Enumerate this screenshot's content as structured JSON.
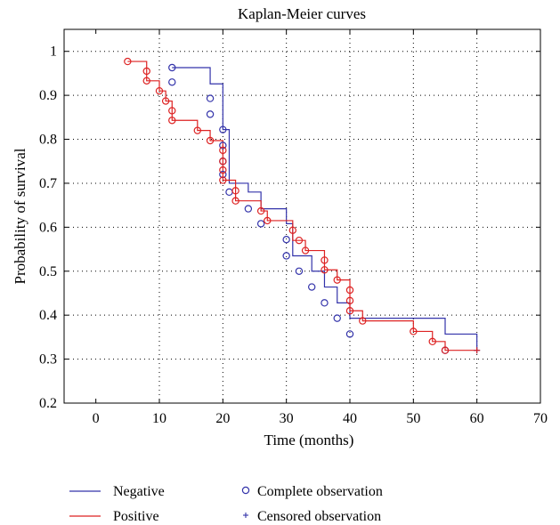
{
  "chart_data": {
    "type": "line",
    "title": "Kaplan-Meier curves",
    "xlabel": "Time (months)",
    "ylabel": "Probability of survival",
    "xlim": [
      -5,
      70
    ],
    "ylim": [
      0.2,
      1.05
    ],
    "xticks": [
      0,
      10,
      20,
      30,
      40,
      50,
      60,
      70
    ],
    "xtick_labels": [
      "0",
      "10",
      "20",
      "30",
      "40",
      "50",
      "60",
      "70"
    ],
    "yticks": [
      0.2,
      0.3,
      0.4,
      0.5,
      0.6,
      0.7,
      0.8,
      0.9,
      1.0
    ],
    "ytick_labels": [
      "0.2",
      "0.3",
      "0.4",
      "0.5",
      "0.6",
      "0.7",
      "0.8",
      "0.9",
      "1"
    ],
    "grid": true,
    "legend_position": "below",
    "series": [
      {
        "name": "Negative",
        "color": "#3333aa",
        "steps": [
          [
            12,
            0.963
          ],
          [
            18,
            0.926
          ],
          [
            20,
            0.822
          ],
          [
            21,
            0.7
          ],
          [
            24,
            0.68
          ],
          [
            26,
            0.642
          ],
          [
            30,
            0.608
          ],
          [
            31,
            0.535
          ],
          [
            34,
            0.5
          ],
          [
            36,
            0.464
          ],
          [
            38,
            0.428
          ],
          [
            40,
            0.393
          ],
          [
            55,
            0.357
          ],
          [
            60,
            0.32
          ]
        ],
        "step_start": 12,
        "end_x": 60,
        "complete_observations": [
          [
            12,
            0.963
          ],
          [
            12,
            0.93
          ],
          [
            18,
            0.893
          ],
          [
            18,
            0.857
          ],
          [
            20,
            0.822
          ],
          [
            20,
            0.786
          ],
          [
            20,
            0.75
          ],
          [
            20,
            0.72
          ],
          [
            21,
            0.68
          ],
          [
            24,
            0.642
          ],
          [
            26,
            0.608
          ],
          [
            30,
            0.572
          ],
          [
            30,
            0.535
          ],
          [
            32,
            0.5
          ],
          [
            34,
            0.464
          ],
          [
            36,
            0.428
          ],
          [
            38,
            0.393
          ],
          [
            40,
            0.357
          ],
          [
            55,
            0.32
          ]
        ],
        "censored_observations": [
          [
            60,
            0.32
          ]
        ]
      },
      {
        "name": "Positive",
        "color": "#dd2222",
        "steps": [
          [
            5,
            0.977
          ],
          [
            8,
            0.933
          ],
          [
            10,
            0.91
          ],
          [
            11,
            0.887
          ],
          [
            12,
            0.843
          ],
          [
            16,
            0.82
          ],
          [
            18,
            0.797
          ],
          [
            20,
            0.707
          ],
          [
            22,
            0.66
          ],
          [
            26,
            0.637
          ],
          [
            27,
            0.615
          ],
          [
            31,
            0.57
          ],
          [
            33,
            0.547
          ],
          [
            36,
            0.503
          ],
          [
            38,
            0.48
          ],
          [
            40,
            0.41
          ],
          [
            42,
            0.387
          ],
          [
            50,
            0.363
          ],
          [
            53,
            0.34
          ],
          [
            55,
            0.32
          ],
          [
            60,
            0.32
          ]
        ],
        "step_start": 5,
        "end_x": 60,
        "complete_observations": [
          [
            5,
            0.977
          ],
          [
            8,
            0.955
          ],
          [
            8,
            0.933
          ],
          [
            10,
            0.91
          ],
          [
            11,
            0.887
          ],
          [
            12,
            0.865
          ],
          [
            12,
            0.843
          ],
          [
            16,
            0.82
          ],
          [
            18,
            0.797
          ],
          [
            20,
            0.775
          ],
          [
            20,
            0.75
          ],
          [
            20,
            0.73
          ],
          [
            20,
            0.707
          ],
          [
            22,
            0.683
          ],
          [
            22,
            0.66
          ],
          [
            26,
            0.637
          ],
          [
            27,
            0.615
          ],
          [
            31,
            0.593
          ],
          [
            32,
            0.57
          ],
          [
            33,
            0.547
          ],
          [
            36,
            0.525
          ],
          [
            36,
            0.503
          ],
          [
            38,
            0.48
          ],
          [
            40,
            0.457
          ],
          [
            40,
            0.433
          ],
          [
            40,
            0.41
          ],
          [
            42,
            0.387
          ],
          [
            50,
            0.363
          ],
          [
            53,
            0.34
          ],
          [
            55,
            0.32
          ]
        ],
        "censored_observations": [
          [
            60,
            0.32
          ]
        ]
      }
    ]
  },
  "legend": {
    "series_items": [
      {
        "label": "Negative",
        "color": "#3333aa"
      },
      {
        "label": "Positive",
        "color": "#dd2222"
      }
    ],
    "marker_items": [
      {
        "label": "Complete observation",
        "marker": "circle-icon",
        "color": "#3333aa"
      },
      {
        "label": "Censored observation",
        "marker": "plus-icon",
        "color": "#3333aa"
      }
    ]
  }
}
